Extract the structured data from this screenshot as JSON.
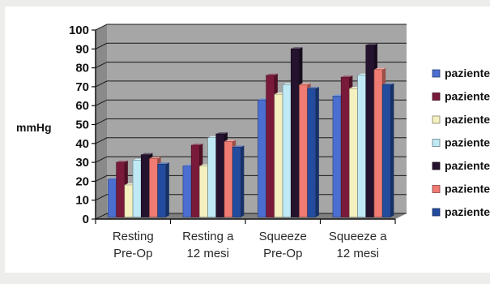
{
  "chart_data": {
    "type": "bar",
    "ylabel": "mmHg",
    "ylim": [
      0,
      100
    ],
    "yticks": [
      "0",
      "10",
      "20",
      "30",
      "40",
      "50",
      "60",
      "70",
      "80",
      "90",
      "100"
    ],
    "grid": true,
    "legend_placement": "right",
    "categories": [
      [
        "Resting",
        "Pre-Op"
      ],
      [
        "Resting a",
        "12 mesi"
      ],
      [
        "Squeeze",
        "Pre-Op"
      ],
      [
        "Squeeze a",
        "12 mesi"
      ]
    ],
    "series": [
      {
        "name": "paziente",
        "color": "#4a6fd0",
        "values": [
          20,
          27,
          62,
          64
        ]
      },
      {
        "name": "paziente",
        "color": "#7a1a3a",
        "values": [
          29,
          38,
          75,
          74
        ]
      },
      {
        "name": "paziente",
        "color": "#f4f0c0",
        "values": [
          17,
          27,
          65,
          68
        ]
      },
      {
        "name": "paziente",
        "color": "#bfe9f5",
        "values": [
          30,
          42,
          70,
          75
        ]
      },
      {
        "name": "paziente",
        "color": "#24122e",
        "values": [
          33,
          44,
          89,
          91
        ]
      },
      {
        "name": "paziente",
        "color": "#ef7b72",
        "values": [
          31,
          40,
          70,
          78
        ]
      },
      {
        "name": "paziente",
        "color": "#244c9e",
        "values": [
          28,
          37,
          68,
          70
        ]
      }
    ]
  }
}
